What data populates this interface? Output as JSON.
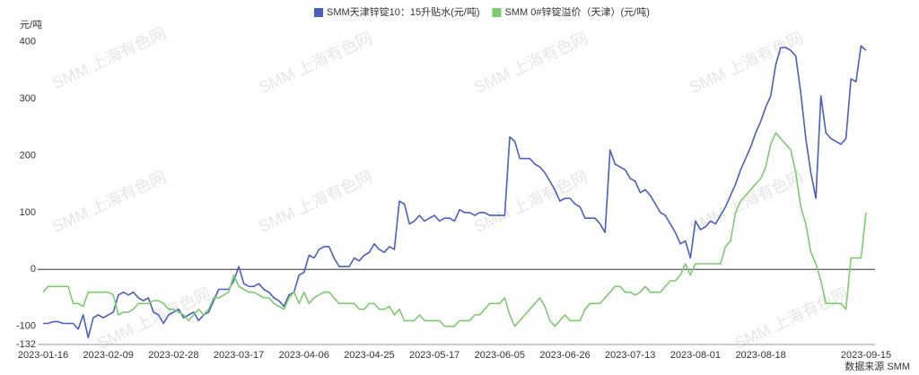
{
  "chart_data": {
    "type": "line",
    "y_label": "元/吨",
    "source": "数据来源 SMM",
    "watermark": "SMM 上海有色网",
    "categories": [
      "2023-01-16",
      null,
      null,
      null,
      null,
      null,
      null,
      null,
      null,
      null,
      null,
      null,
      null,
      "2023-02-09",
      null,
      null,
      null,
      null,
      null,
      null,
      null,
      null,
      null,
      null,
      null,
      null,
      "2023-02-28",
      null,
      null,
      null,
      null,
      null,
      null,
      null,
      null,
      null,
      null,
      null,
      null,
      "2023-03-17",
      null,
      null,
      null,
      null,
      null,
      null,
      null,
      null,
      null,
      null,
      null,
      null,
      "2023-04-06",
      null,
      null,
      null,
      null,
      null,
      null,
      null,
      null,
      null,
      null,
      null,
      null,
      "2023-04-25",
      null,
      null,
      null,
      null,
      null,
      null,
      null,
      null,
      null,
      null,
      null,
      null,
      "2023-05-17",
      null,
      null,
      null,
      null,
      null,
      null,
      null,
      null,
      null,
      null,
      null,
      null,
      "2023-06-05",
      null,
      null,
      null,
      null,
      null,
      null,
      null,
      null,
      null,
      null,
      null,
      null,
      "2023-06-26",
      null,
      null,
      null,
      null,
      null,
      null,
      null,
      null,
      null,
      null,
      null,
      null,
      "2023-07-13",
      null,
      null,
      null,
      null,
      null,
      null,
      null,
      null,
      null,
      null,
      null,
      null,
      "2023-08-01",
      null,
      null,
      null,
      null,
      null,
      null,
      null,
      null,
      null,
      null,
      null,
      null,
      "2023-08-18",
      null,
      null,
      null,
      null,
      null,
      null,
      null,
      null,
      null,
      null,
      null,
      null,
      null,
      null,
      null,
      null,
      null,
      null,
      null,
      null,
      "2023-09-15"
    ],
    "series": [
      {
        "name": "SMM天津锌锭10：15升贴水(元/吨)",
        "color": "#4a5fbf",
        "values": [
          -95,
          -95,
          -92,
          -92,
          -95,
          -95,
          -95,
          -105,
          -80,
          -120,
          -85,
          -80,
          -85,
          -80,
          -75,
          -45,
          -40,
          -45,
          -40,
          -50,
          -55,
          -50,
          -75,
          -80,
          -95,
          -80,
          -75,
          -70,
          -85,
          -80,
          -75,
          -90,
          -80,
          -75,
          -55,
          -35,
          -35,
          -35,
          -20,
          5,
          -25,
          -30,
          -30,
          -25,
          -35,
          -40,
          -50,
          -55,
          -65,
          -45,
          -40,
          -10,
          -5,
          25,
          20,
          35,
          40,
          40,
          20,
          5,
          5,
          5,
          20,
          15,
          25,
          30,
          45,
          35,
          30,
          40,
          35,
          120,
          115,
          80,
          85,
          95,
          85,
          90,
          95,
          85,
          90,
          90,
          85,
          105,
          100,
          100,
          95,
          100,
          100,
          95,
          95,
          95,
          95,
          233,
          225,
          195,
          195,
          195,
          185,
          180,
          170,
          155,
          140,
          120,
          125,
          125,
          115,
          110,
          90,
          90,
          90,
          80,
          65,
          210,
          185,
          180,
          175,
          160,
          155,
          135,
          140,
          130,
          115,
          100,
          95,
          80,
          65,
          45,
          50,
          20,
          85,
          70,
          75,
          85,
          80,
          95,
          110,
          130,
          150,
          175,
          195,
          215,
          240,
          260,
          285,
          305,
          360,
          390,
          390,
          385,
          375,
          310,
          230,
          170,
          125,
          305,
          240,
          230,
          225,
          220,
          230,
          335,
          330,
          393,
          385
        ]
      },
      {
        "name": "SMM 0#锌锭溢价（天津）(元/吨)",
        "color": "#7ccb6e",
        "values": [
          -40,
          -30,
          -30,
          -30,
          -30,
          -30,
          -60,
          -60,
          -65,
          -40,
          -40,
          -40,
          -40,
          -40,
          -45,
          -80,
          -75,
          -75,
          -70,
          -60,
          -60,
          -60,
          -55,
          -55,
          -60,
          -70,
          -70,
          -75,
          -80,
          -90,
          -80,
          -70,
          -80,
          -70,
          -50,
          -50,
          -45,
          -40,
          -10,
          -30,
          -35,
          -40,
          -40,
          -45,
          -50,
          -50,
          -60,
          -65,
          -70,
          -50,
          -40,
          -60,
          -40,
          -60,
          -50,
          -45,
          -40,
          -40,
          -50,
          -60,
          -60,
          -60,
          -60,
          -70,
          -70,
          -60,
          -60,
          -70,
          -70,
          -65,
          -80,
          -70,
          -90,
          -90,
          -90,
          -80,
          -90,
          -90,
          -90,
          -90,
          -100,
          -100,
          -100,
          -90,
          -90,
          -90,
          -80,
          -80,
          -70,
          -60,
          -60,
          -60,
          -50,
          -80,
          -100,
          -90,
          -80,
          -70,
          -60,
          -50,
          -65,
          -90,
          -100,
          -90,
          -80,
          -90,
          -90,
          -90,
          -70,
          -60,
          -60,
          -60,
          -50,
          -40,
          -30,
          -30,
          -40,
          -40,
          -45,
          -40,
          -30,
          -40,
          -40,
          -40,
          -30,
          -20,
          -20,
          -10,
          10,
          -10,
          10,
          10,
          10,
          10,
          10,
          10,
          40,
          50,
          100,
          120,
          130,
          140,
          150,
          160,
          180,
          220,
          240,
          230,
          220,
          210,
          170,
          110,
          80,
          30,
          10,
          -20,
          -60,
          -60,
          -60,
          -60,
          -70,
          20,
          20,
          20,
          100
        ]
      }
    ],
    "ylim": [
      -132,
      420
    ],
    "yticks": [
      -132,
      -100,
      0,
      100,
      200,
      300,
      400
    ],
    "legend": "top"
  }
}
